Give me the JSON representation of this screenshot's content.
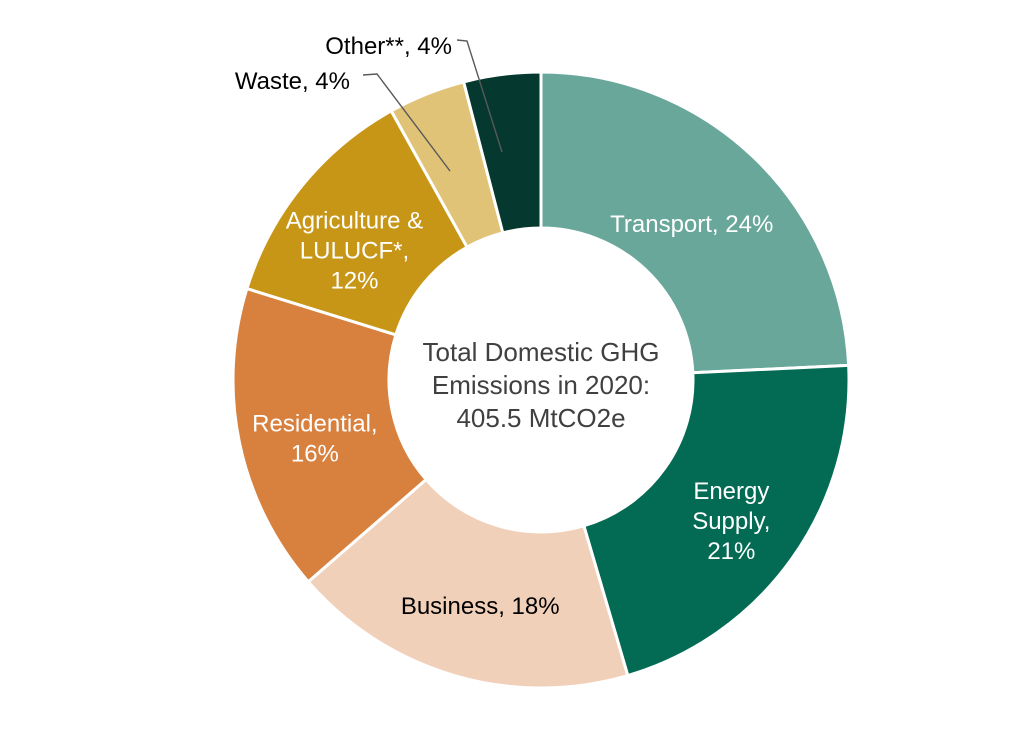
{
  "chart_data": {
    "type": "pie",
    "subtype": "donut",
    "title": "",
    "unit": "%",
    "direction": "clockwise",
    "start_angle_deg": 0,
    "legend_position": "none",
    "grid": false,
    "labels_on_slices": true,
    "center_label_lines": [
      "Total Domestic GHG",
      "Emissions in 2020:",
      "405.5 MtCO2e"
    ],
    "center_total_value": "405.5",
    "center_total_unit": "MtCO2e",
    "categories": [
      "Transport",
      "Energy Supply",
      "Business",
      "Residential",
      "Agriculture & LULUCF*",
      "Waste",
      "Other**"
    ],
    "values": [
      24,
      21,
      18,
      16,
      12,
      4,
      4
    ],
    "slices": [
      {
        "name": "Transport",
        "percent": 24,
        "color": "#69A79A",
        "label_color": "#FFFFFF",
        "label_placement": "inside",
        "label_lines": [
          "Transport, 24%"
        ]
      },
      {
        "name": "Energy Supply",
        "percent": 21,
        "color": "#036B54",
        "label_color": "#FFFFFF",
        "label_placement": "inside",
        "label_lines": [
          "Energy",
          "Supply,",
          "21%"
        ]
      },
      {
        "name": "Business",
        "percent": 18,
        "color": "#F1D0BA",
        "label_color": "#000000",
        "label_placement": "inside",
        "label_lines": [
          "Business, 18%"
        ]
      },
      {
        "name": "Residential",
        "percent": 16,
        "color": "#D8813F",
        "label_color": "#FFFFFF",
        "label_placement": "inside",
        "label_lines": [
          "Residential,",
          "16%"
        ]
      },
      {
        "name": "Agriculture & LULUCF*",
        "percent": 12,
        "color": "#C89617",
        "label_color": "#FFFFFF",
        "label_placement": "inside",
        "label_lines": [
          "Agriculture &",
          "LULUCF*,",
          "12%"
        ]
      },
      {
        "name": "Waste",
        "percent": 4,
        "color": "#E0C377",
        "label_color": "#000000",
        "label_placement": "outside",
        "label_lines": [
          "Waste, 4%"
        ]
      },
      {
        "name": "Other**",
        "percent": 4,
        "color": "#05382E",
        "label_color": "#000000",
        "label_placement": "outside",
        "label_lines": [
          "Other**, 4%"
        ]
      }
    ],
    "colors": {
      "background": "#FFFFFF",
      "slice_border": "#FFFFFF",
      "center_text": "#404040",
      "leader_line": "#595959"
    }
  }
}
